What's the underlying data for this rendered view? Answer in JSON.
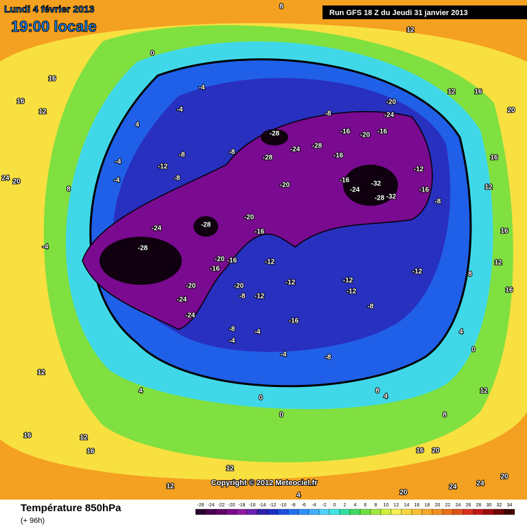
{
  "header": {
    "date": "Lundi 4 février 2013",
    "time": "19:00 locale",
    "run": "Run GFS 18 Z du Jeudi 31 janvier 2013"
  },
  "footer": {
    "title": "Température 850hPa",
    "lead": "(+ 96h)",
    "copyright": "Copyright © 2012 Meteociel.fr"
  },
  "scale": {
    "labels": [
      -26,
      -24,
      -22,
      -20,
      -18,
      -16,
      -14,
      -12,
      -10,
      -8,
      -6,
      -4,
      -2,
      0,
      2,
      4,
      6,
      8,
      10,
      12,
      14,
      16,
      18,
      20,
      22,
      24,
      26,
      28,
      30,
      32,
      34
    ],
    "colors": [
      "#2a0030",
      "#4a0050",
      "#62006a",
      "#7a0a88",
      "#8e1aa0",
      "#6a20b0",
      "#3020a8",
      "#1a30c8",
      "#2050e0",
      "#2070f0",
      "#3090f8",
      "#40b0ff",
      "#50d0ff",
      "#40e8e0",
      "#30e0a0",
      "#40d860",
      "#70e040",
      "#a0e840",
      "#d0f040",
      "#f8f050",
      "#f8d840",
      "#f8c030",
      "#f8a828",
      "#f09020",
      "#e87018",
      "#e05018",
      "#d83020",
      "#c01818",
      "#a00c10",
      "#700808",
      "#400404"
    ]
  },
  "map": {
    "contour_labels": [
      -28,
      -28,
      -28,
      -24,
      -20,
      -16,
      -12,
      -12,
      -12,
      -8,
      -20,
      -20,
      -24,
      -24,
      -16,
      -20,
      -16,
      -32,
      -28,
      -32,
      -24,
      -16,
      -20,
      -28,
      -24,
      -28,
      -16,
      -16,
      -8,
      -20,
      -24,
      -16,
      -20,
      -12,
      -16,
      -8,
      -12,
      -8,
      -12,
      -12,
      -16,
      -8,
      -4,
      -4,
      -8,
      -4,
      -4,
      -4,
      -8,
      -12,
      -8,
      -8,
      -4,
      -4,
      -4,
      0,
      0,
      0,
      4,
      4,
      8,
      8,
      12,
      12,
      16,
      20,
      24,
      20,
      16,
      12,
      16,
      12,
      16,
      12,
      16,
      12,
      16,
      12,
      16,
      12,
      8,
      16,
      4,
      0,
      4,
      8,
      8,
      12,
      16,
      20,
      20,
      24,
      24,
      20,
      12,
      4
    ]
  }
}
